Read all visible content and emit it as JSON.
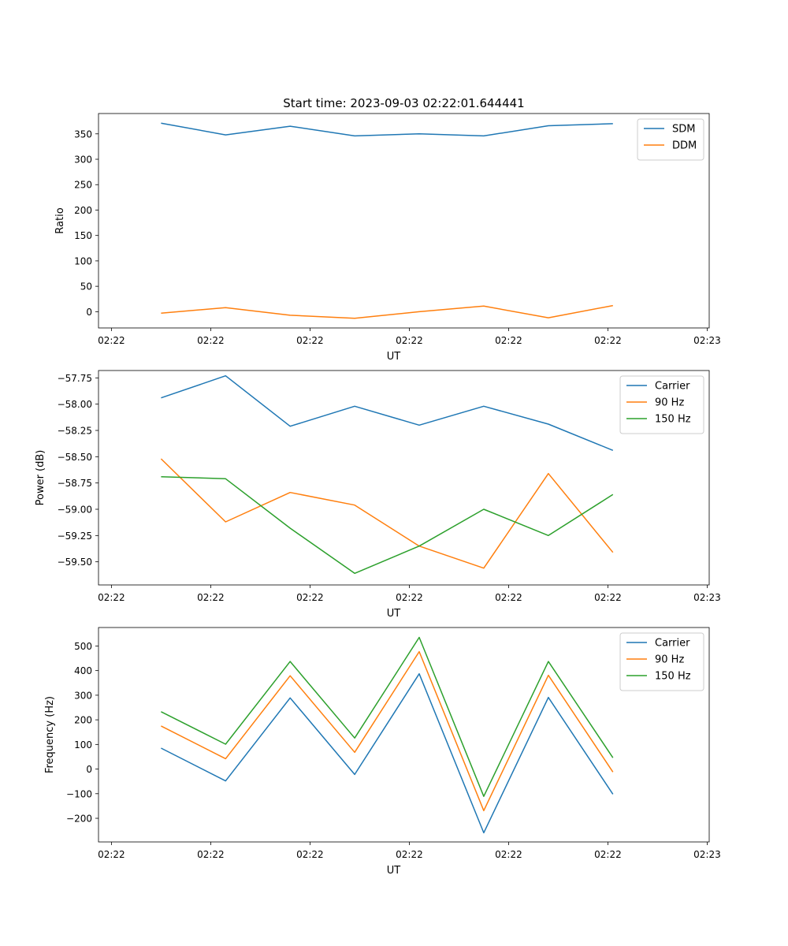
{
  "title": "Start time: 2023-09-03 02:22:01.644441",
  "colors": {
    "blue": "#1f77b4",
    "orange": "#ff7f0e",
    "green": "#2ca02c"
  },
  "chart_data": [
    {
      "type": "line",
      "xlabel": "UT",
      "ylabel": "Ratio",
      "x_tick_labels": [
        "02:22",
        "02:22",
        "02:22",
        "02:22",
        "02:22",
        "02:22",
        "02:23"
      ],
      "x_ticks": [
        0,
        1,
        2,
        3,
        4,
        5,
        6
      ],
      "xlim": [
        -0.13,
        6.02
      ],
      "x": [
        0.5,
        1.15,
        1.8,
        2.45,
        3.1,
        3.75,
        4.4,
        5.05
      ],
      "ylim": [
        -32,
        390
      ],
      "yticks": [
        0,
        50,
        100,
        150,
        200,
        250,
        300,
        350
      ],
      "legend": "top-right",
      "series": [
        {
          "name": "SDM",
          "color": "#1f77b4",
          "values": [
            371,
            348,
            365,
            346,
            350,
            346,
            366,
            370
          ]
        },
        {
          "name": "DDM",
          "color": "#ff7f0e",
          "values": [
            -3,
            8,
            -7,
            -13,
            0,
            11,
            -12,
            12
          ]
        }
      ]
    },
    {
      "type": "line",
      "xlabel": "UT",
      "ylabel": "Power (dB)",
      "x_tick_labels": [
        "02:22",
        "02:22",
        "02:22",
        "02:22",
        "02:22",
        "02:22",
        "02:23"
      ],
      "x_ticks": [
        0,
        1,
        2,
        3,
        4,
        5,
        6
      ],
      "xlim": [
        -0.13,
        6.02
      ],
      "x": [
        0.5,
        1.15,
        1.8,
        2.45,
        3.1,
        3.75,
        4.4,
        5.05
      ],
      "ylim": [
        -59.72,
        -57.68
      ],
      "yticks": [
        -57.75,
        -58.0,
        -58.25,
        -58.5,
        -58.75,
        -59.0,
        -59.25,
        -59.5
      ],
      "ytick_labels": [
        "−57.75",
        "−58.00",
        "−58.25",
        "−58.50",
        "−58.75",
        "−59.00",
        "−59.25",
        "−59.50"
      ],
      "legend": "top-right",
      "series": [
        {
          "name": "Carrier",
          "color": "#1f77b4",
          "values": [
            -57.94,
            -57.73,
            -58.21,
            -58.02,
            -58.2,
            -58.02,
            -58.19,
            -58.44
          ]
        },
        {
          "name": "90 Hz",
          "color": "#ff7f0e",
          "values": [
            -58.52,
            -59.12,
            -58.84,
            -58.96,
            -59.35,
            -59.56,
            -58.66,
            -59.41
          ]
        },
        {
          "name": "150 Hz",
          "color": "#2ca02c",
          "values": [
            -58.69,
            -58.71,
            -59.18,
            -59.61,
            -59.35,
            -59.0,
            -59.25,
            -58.86
          ]
        }
      ]
    },
    {
      "type": "line",
      "xlabel": "UT",
      "ylabel": "Frequency (Hz)",
      "x_tick_labels": [
        "02:22",
        "02:22",
        "02:22",
        "02:22",
        "02:22",
        "02:22",
        "02:23"
      ],
      "x_ticks": [
        0,
        1,
        2,
        3,
        4,
        5,
        6
      ],
      "xlim": [
        -0.13,
        6.02
      ],
      "x": [
        0.5,
        1.15,
        1.8,
        2.45,
        3.1,
        3.75,
        4.4,
        5.05
      ],
      "ylim": [
        -296,
        575
      ],
      "yticks": [
        -200,
        -100,
        0,
        100,
        200,
        300,
        400,
        500
      ],
      "ytick_labels": [
        "−200",
        "−100",
        "0",
        "100",
        "200",
        "300",
        "400",
        "500"
      ],
      "legend": "top-right",
      "series": [
        {
          "name": "Carrier",
          "color": "#1f77b4",
          "values": [
            85,
            -48,
            289,
            -22,
            387,
            -259,
            291,
            -102
          ]
        },
        {
          "name": "90 Hz",
          "color": "#ff7f0e",
          "values": [
            175,
            42,
            379,
            68,
            477,
            -169,
            381,
            -12
          ]
        },
        {
          "name": "150 Hz",
          "color": "#2ca02c",
          "values": [
            233,
            101,
            437,
            126,
            535,
            -111,
            437,
            46
          ]
        }
      ]
    }
  ]
}
